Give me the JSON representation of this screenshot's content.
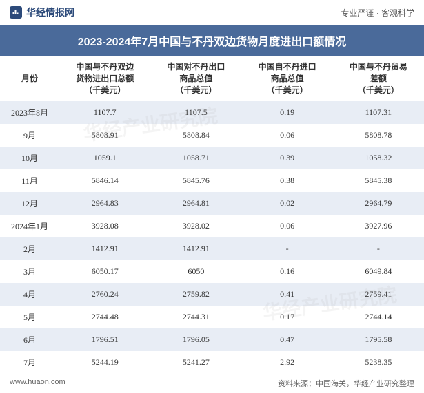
{
  "header": {
    "site_name": "华经情报网",
    "tagline": "专业严谨  ·  客观科学"
  },
  "chart": {
    "title": "2023-2024年7月中国与不丹双边货物月度进出口额情况",
    "columns": [
      "月份",
      "中国与不丹双边\n货物进出口总额\n（千美元）",
      "中国对不丹出口\n商品总值\n（千美元）",
      "中国自不丹进口\n商品总值\n（千美元）",
      "中国与不丹贸易\n差额\n（千美元）"
    ],
    "rows": [
      [
        "2023年8月",
        "1107.7",
        "1107.5",
        "0.19",
        "1107.31"
      ],
      [
        "9月",
        "5808.91",
        "5808.84",
        "0.06",
        "5808.78"
      ],
      [
        "10月",
        "1059.1",
        "1058.71",
        "0.39",
        "1058.32"
      ],
      [
        "11月",
        "5846.14",
        "5845.76",
        "0.38",
        "5845.38"
      ],
      [
        "12月",
        "2964.83",
        "2964.81",
        "0.02",
        "2964.79"
      ],
      [
        "2024年1月",
        "3928.08",
        "3928.02",
        "0.06",
        "3927.96"
      ],
      [
        "2月",
        "1412.91",
        "1412.91",
        "-",
        "-"
      ],
      [
        "3月",
        "6050.17",
        "6050",
        "0.16",
        "6049.84"
      ],
      [
        "4月",
        "2760.24",
        "2759.82",
        "0.41",
        "2759.41"
      ],
      [
        "5月",
        "2744.48",
        "2744.31",
        "0.17",
        "2744.14"
      ],
      [
        "6月",
        "1796.51",
        "1796.05",
        "0.47",
        "1795.58"
      ],
      [
        "7月",
        "5244.19",
        "5241.27",
        "2.92",
        "5238.35"
      ]
    ],
    "row_bg_odd": "#e8edf5",
    "row_bg_even": "#ffffff",
    "title_bg": "#4a6a9a",
    "text_color": "#333333"
  },
  "footer": {
    "website": "www.huaon.com",
    "source": "资料来源：中国海关，华经产业研究整理"
  },
  "watermark": "华经产业研究院"
}
